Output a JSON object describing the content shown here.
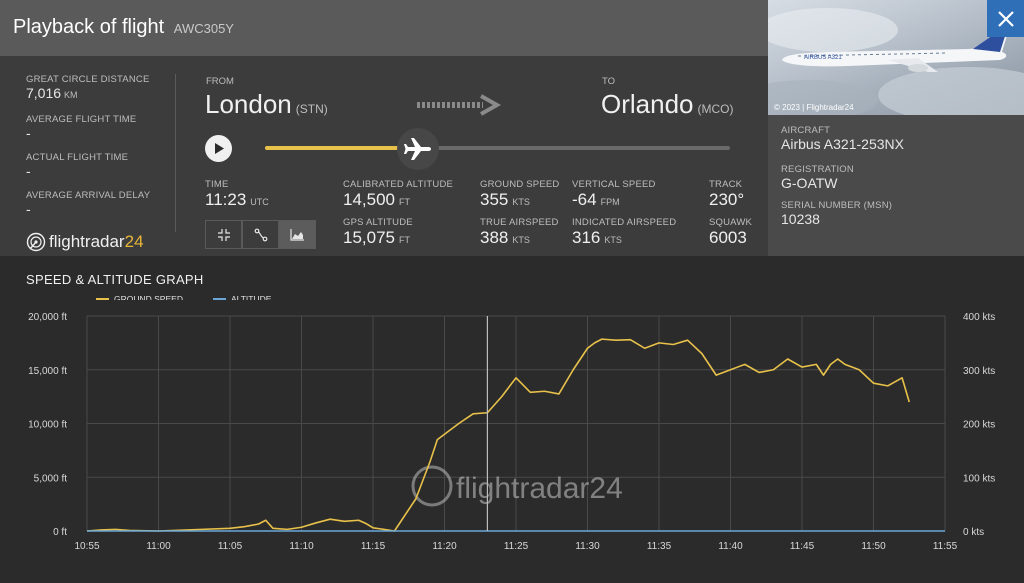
{
  "header": {
    "title": "Playback of flight",
    "flight": "AWC305Y"
  },
  "stats": {
    "gcd_label": "GREAT CIRCLE DISTANCE",
    "gcd_value": "7,016",
    "gcd_unit": "KM",
    "avg_time_label": "AVERAGE FLIGHT TIME",
    "avg_time_value": "-",
    "actual_time_label": "ACTUAL FLIGHT TIME",
    "actual_time_value": "-",
    "delay_label": "AVERAGE ARRIVAL DELAY",
    "delay_value": "-"
  },
  "logo": {
    "text": "flightradar",
    "num": "24"
  },
  "route": {
    "from_label": "FROM",
    "from_city": "London",
    "from_code": "(STN)",
    "to_label": "TO",
    "to_city": "Orlando",
    "to_code": "(MCO)"
  },
  "playback": {
    "progress": 0.33
  },
  "telemetry": {
    "time_label": "TIME",
    "time_value": "11:23",
    "time_unit": "UTC",
    "cal_alt_label": "CALIBRATED ALTITUDE",
    "cal_alt_value": "14,500",
    "cal_alt_unit": "FT",
    "gps_alt_label": "GPS ALTITUDE",
    "gps_alt_value": "15,075",
    "gps_alt_unit": "FT",
    "gs_label": "GROUND SPEED",
    "gs_value": "355",
    "gs_unit": "KTS",
    "tas_label": "TRUE AIRSPEED",
    "tas_value": "388",
    "tas_unit": "KTS",
    "vs_label": "VERTICAL SPEED",
    "vs_value": "-64",
    "vs_unit": "FPM",
    "ias_label": "INDICATED AIRSPEED",
    "ias_value": "316",
    "ias_unit": "KTS",
    "track_label": "TRACK",
    "track_value": "230°",
    "squawk_label": "SQUAWK",
    "squawk_value": "6003"
  },
  "view_modes": [
    "map-expand-icon",
    "route-icon",
    "graph-icon"
  ],
  "aircraft": {
    "photo_credit": "© 2023 | Flightradar24",
    "type_label": "AIRCRAFT",
    "type_value": "Airbus A321-253NX",
    "reg_label": "REGISTRATION",
    "reg_value": "G-OATW",
    "msn_label": "SERIAL NUMBER (MSN)",
    "msn_value": "10238"
  },
  "graph": {
    "title": "SPEED & ALTITUDE GRAPH",
    "legend_speed": "GROUND SPEED",
    "legend_alt": "ALTITUDE"
  },
  "colors": {
    "speed": "#e8c14a",
    "altitude": "#6aa7d8",
    "accent": "#2f6fb8"
  },
  "chart_data": {
    "type": "line",
    "title": "SPEED & ALTITUDE GRAPH",
    "x_ticks": [
      "10:55",
      "11:00",
      "11:05",
      "11:10",
      "11:15",
      "11:20",
      "11:25",
      "11:30",
      "11:35",
      "11:40",
      "11:45",
      "11:50",
      "11:55"
    ],
    "xlim": [
      0,
      60
    ],
    "y_left": {
      "ticks": [
        "0 ft",
        "5,000 ft",
        "10,000 ft",
        "15,000 ft",
        "20,000 ft"
      ],
      "lim": [
        0,
        20000
      ]
    },
    "y_right": {
      "ticks": [
        "0 kts",
        "100 kts",
        "200 kts",
        "300 kts",
        "400 kts"
      ],
      "lim": [
        0,
        400
      ]
    },
    "cursor_x": 28,
    "grid": true,
    "series": [
      {
        "name": "GROUND SPEED",
        "axis": "right",
        "x": [
          0,
          1,
          2,
          3,
          5,
          8,
          10,
          11,
          12,
          12.5,
          13,
          14,
          15,
          16,
          17,
          18,
          19,
          19.5,
          20,
          21,
          21.5,
          22,
          23,
          24,
          24.5,
          25,
          26,
          27,
          28,
          29,
          30,
          31,
          32,
          33,
          34,
          35,
          35.5,
          36,
          37,
          38,
          39,
          40,
          41,
          42,
          43,
          44,
          45,
          45.5,
          46,
          47,
          48,
          49,
          50,
          51,
          51.5,
          52,
          52.5,
          53,
          54,
          55,
          56,
          57,
          57.5
        ],
        "y": [
          0,
          2,
          3,
          1,
          0,
          3,
          5,
          8,
          13,
          20,
          5,
          3,
          7,
          15,
          22,
          18,
          20,
          14,
          6,
          2,
          0,
          20,
          60,
          130,
          170,
          180,
          200,
          218,
          220,
          250,
          285,
          258,
          260,
          255,
          300,
          340,
          350,
          357,
          355,
          356,
          340,
          350,
          347,
          355,
          330,
          290,
          300,
          305,
          310,
          295,
          300,
          320,
          305,
          310,
          290,
          310,
          320,
          310,
          300,
          275,
          270,
          285,
          240
        ]
      },
      {
        "name": "ALTITUDE",
        "axis": "left",
        "x": [
          0,
          20.5,
          21,
          21.5,
          22,
          23,
          24,
          25,
          26,
          27,
          28,
          29,
          30,
          31,
          32,
          33,
          34,
          35,
          36,
          37,
          38,
          39,
          40,
          42,
          44,
          46,
          48,
          50,
          52,
          54,
          56,
          58,
          60
        ],
        "y": [
          0,
          0,
          0,
          0,
          0,
          0,
          0,
          0,
          0,
          0,
          0,
          0,
          0,
          0,
          0,
          0,
          0,
          0,
          0,
          0,
          0,
          0,
          0,
          0,
          0,
          0,
          0,
          0,
          0,
          0,
          0,
          0,
          0
        ]
      }
    ]
  }
}
